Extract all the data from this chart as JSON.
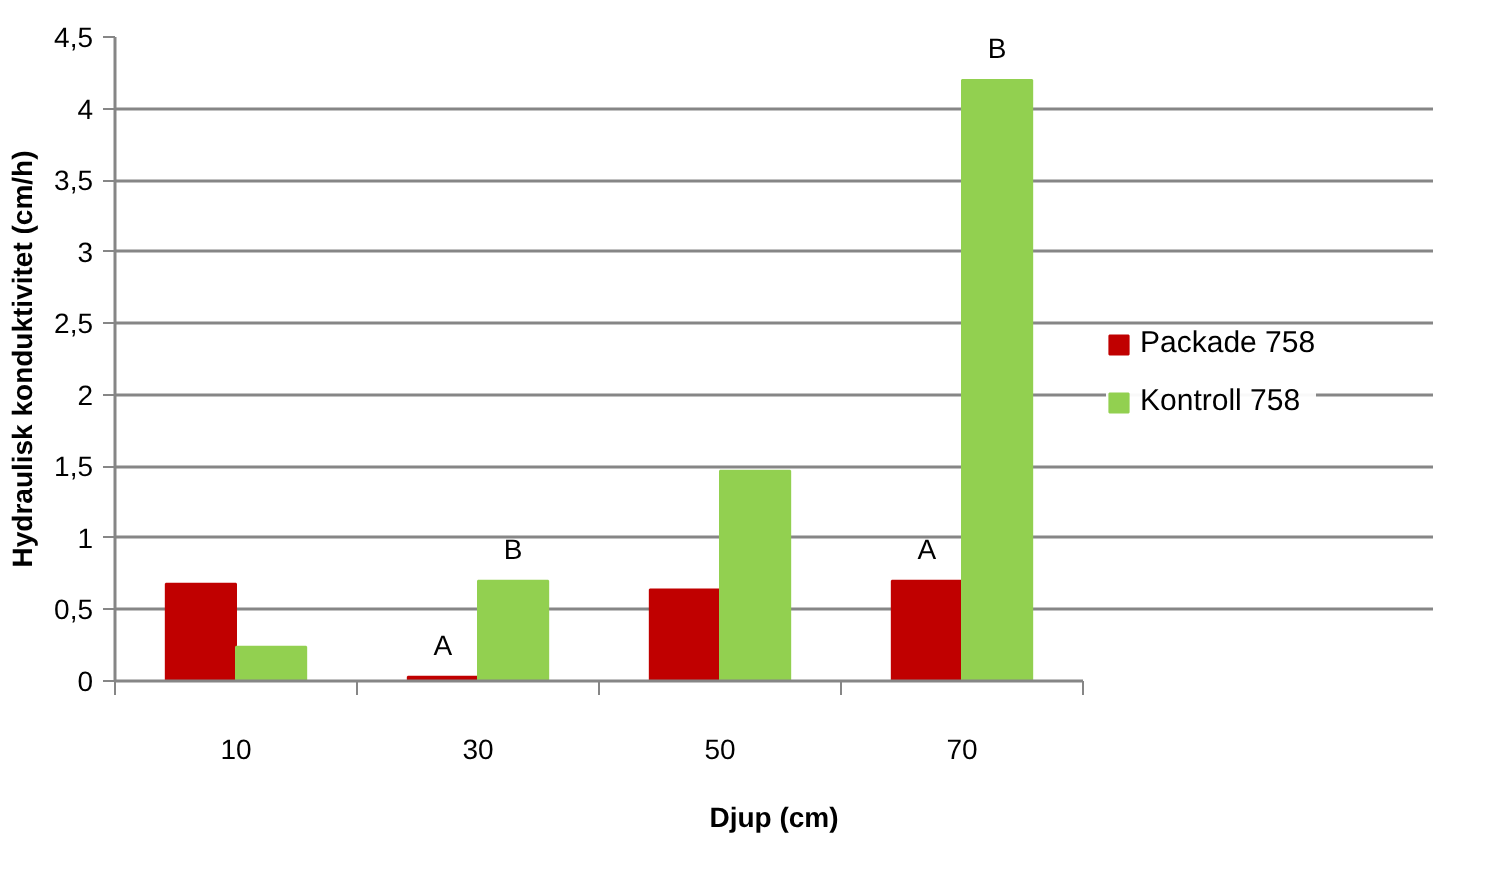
{
  "chart_data": {
    "type": "bar",
    "xlabel": "Djup (cm)",
    "ylabel": "Hydraulisk konduktivitet (cm/h)",
    "categories": [
      "10",
      "30",
      "50",
      "70"
    ],
    "series": [
      {
        "name": "Packade 758",
        "color": "#c00000",
        "values": [
          0.68,
          0.03,
          0.64,
          0.7
        ]
      },
      {
        "name": "Kontroll 758",
        "color": "#92d050",
        "values": [
          0.24,
          0.7,
          1.47,
          4.2
        ]
      }
    ],
    "ylim": [
      0,
      4.5
    ],
    "yticks": [
      0,
      {
        "value": 0.5,
        "label": "0,5"
      },
      1,
      {
        "value": 1.5,
        "label": "1,5"
      },
      2,
      {
        "value": 2.5,
        "label": "2,5"
      },
      3,
      {
        "value": 3.5,
        "label": "3,5"
      },
      4,
      {
        "value": 4.5,
        "label": "4,5"
      }
    ],
    "grid": "y",
    "legend": "right",
    "annotations": [
      {
        "text": "A",
        "x": "30",
        "y": 0.03
      },
      {
        "text": "B",
        "x": "30",
        "y": 0.7
      },
      {
        "text": "A",
        "x": "70",
        "y": 0.7
      },
      {
        "text": "B",
        "x": "70",
        "y": 4.2
      }
    ]
  }
}
